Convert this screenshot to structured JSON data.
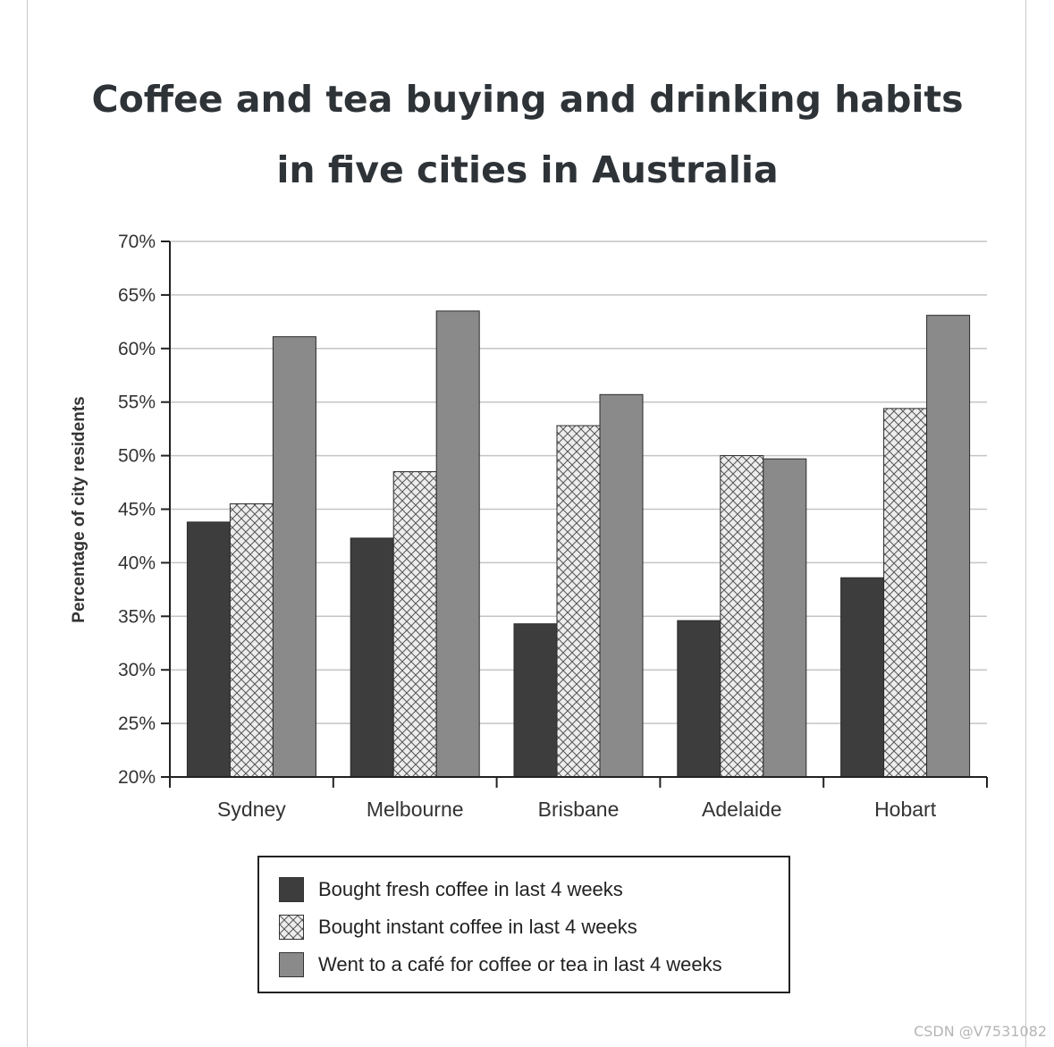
{
  "title_line1": "Coffee and tea buying and drinking habits",
  "title_line2": "in five cities in Australia",
  "watermark": "CSDN @V7531082",
  "chart_data": {
    "type": "bar",
    "title": "Coffee and tea buying and drinking habits in five cities in Australia",
    "xlabel": "",
    "ylabel": "Percentage of city residents",
    "ylim": [
      20,
      70
    ],
    "yticks": [
      20,
      25,
      30,
      35,
      40,
      45,
      50,
      55,
      60,
      65,
      70
    ],
    "ytick_labels": [
      "20%",
      "25%",
      "30%",
      "35%",
      "40%",
      "45%",
      "50%",
      "55%",
      "60%",
      "65%",
      "70%"
    ],
    "categories": [
      "Sydney",
      "Melbourne",
      "Brisbane",
      "Adelaide",
      "Hobart"
    ],
    "grid": true,
    "legend_position": "bottom",
    "series": [
      {
        "name": "Bought fresh coffee in last 4 weeks",
        "values": [
          43.8,
          42.3,
          34.3,
          34.6,
          38.6
        ],
        "color": "#3d3d3d",
        "pattern": "solid"
      },
      {
        "name": "Bought instant coffee in last 4 weeks",
        "values": [
          45.5,
          48.5,
          52.8,
          50.0,
          54.4
        ],
        "color": "#ececec",
        "pattern": "crosshatch"
      },
      {
        "name": "Went to a café for coffee or tea in last 4 weeks",
        "values": [
          61.1,
          63.5,
          55.7,
          49.7,
          63.1
        ],
        "color": "#8a8a8a",
        "pattern": "solid"
      }
    ]
  }
}
